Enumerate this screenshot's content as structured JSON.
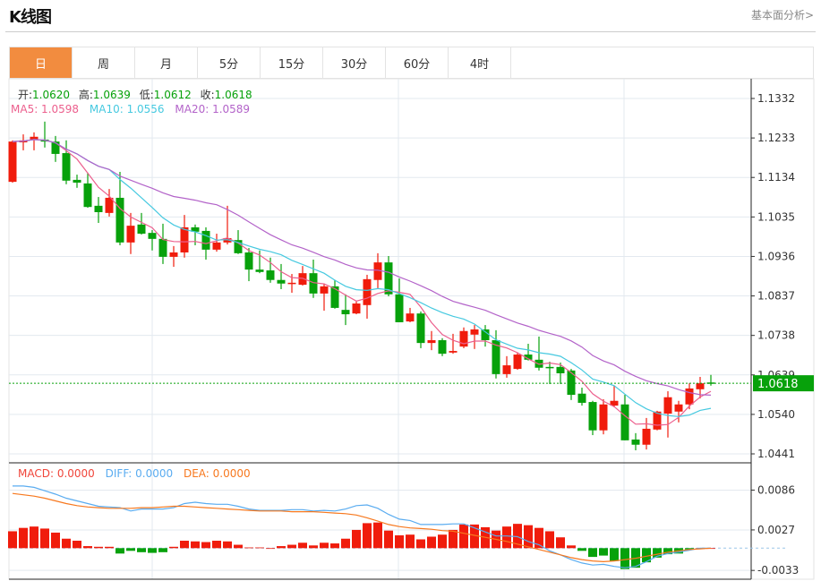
{
  "header": {
    "title": "K线图",
    "fundamental_link": "基本面分析>"
  },
  "tabs": [
    {
      "label": "日",
      "active": true
    },
    {
      "label": "周"
    },
    {
      "label": "月"
    },
    {
      "label": "5分"
    },
    {
      "label": "15分"
    },
    {
      "label": "30分"
    },
    {
      "label": "60分"
    },
    {
      "label": "4时"
    }
  ],
  "ohlc_legend": {
    "open_label": "开:",
    "open": "1.0620",
    "high_label": "高:",
    "high": "1.0639",
    "low_label": "低:",
    "low": "1.0612",
    "close_label": "收:",
    "close": "1.0618"
  },
  "ma_legend": {
    "ma5": "MA5: 1.0598",
    "ma10": "MA10: 1.0556",
    "ma20": "MA20: 1.0589"
  },
  "macd_legend": {
    "macd": "MACD: 0.0000",
    "diff": "DIFF: 0.0000",
    "dea": "DEA: 0.0000"
  },
  "colors": {
    "up": "#f01c0c",
    "down": "#07a10b",
    "ma5": "#ec5f8d",
    "ma10": "#46c9e0",
    "ma20": "#b363c9",
    "diff": "#5aacf0",
    "dea": "#f7781e",
    "tab_active": "#f28c3f"
  },
  "chart_data": [
    {
      "type": "candlestick",
      "price_ticks": [
        "1.1332",
        "1.1233",
        "1.1134",
        "1.1035",
        "1.0936",
        "1.0837",
        "1.0738",
        "1.0639",
        "1.0540",
        "1.0441"
      ],
      "ylim": [
        1.0441,
        1.1332
      ],
      "current_price": "1.0618",
      "ma_periods": [
        5,
        10,
        20
      ],
      "candles": [
        [
          1.1123,
          1.1227,
          1.1121,
          1.1224
        ],
        [
          1.1222,
          1.1242,
          1.1202,
          1.1227
        ],
        [
          1.1229,
          1.1247,
          1.1202,
          1.1236
        ],
        [
          1.1229,
          1.1274,
          1.1209,
          1.1224
        ],
        [
          1.1224,
          1.1238,
          1.1173,
          1.1193
        ],
        [
          1.1195,
          1.1227,
          1.1117,
          1.1126
        ],
        [
          1.1128,
          1.1141,
          1.1108,
          1.1121
        ],
        [
          1.1119,
          1.1146,
          1.1058,
          1.106
        ],
        [
          1.1063,
          1.1085,
          1.102,
          1.1047
        ],
        [
          1.1045,
          1.1105,
          1.1036,
          1.1083
        ],
        [
          1.1083,
          1.1148,
          1.0964,
          1.0971
        ],
        [
          1.0971,
          1.1045,
          1.0942,
          1.1013
        ],
        [
          1.1016,
          1.1045,
          1.0991,
          1.0993
        ],
        [
          1.0995,
          1.1002,
          1.0951,
          1.098
        ],
        [
          1.098,
          1.1018,
          1.0917,
          1.0935
        ],
        [
          1.0935,
          1.0962,
          1.091,
          1.0946
        ],
        [
          1.0946,
          1.104,
          1.0933,
          1.1009
        ],
        [
          1.1009,
          1.1016,
          1.0964,
          1.0998
        ],
        [
          1.1,
          1.1009,
          1.0928,
          1.0953
        ],
        [
          1.0953,
          1.0993,
          1.0948,
          1.0971
        ],
        [
          1.0971,
          1.1063,
          1.0966,
          1.0982
        ],
        [
          1.0977,
          1.1002,
          1.0942,
          1.0944
        ],
        [
          1.0946,
          1.0957,
          1.0874,
          1.0903
        ],
        [
          1.0903,
          1.0951,
          1.0894,
          1.0897
        ],
        [
          1.0901,
          1.0933,
          1.087,
          1.0877
        ],
        [
          1.0877,
          1.0917,
          1.0854,
          1.0868
        ],
        [
          1.0868,
          1.0892,
          1.0845,
          1.087
        ],
        [
          1.0865,
          1.0912,
          1.0863,
          1.0894
        ],
        [
          1.0894,
          1.0928,
          1.0832,
          1.0843
        ],
        [
          1.0843,
          1.0868,
          1.08,
          1.0861
        ],
        [
          1.0861,
          1.0877,
          1.0805,
          1.0807
        ],
        [
          1.0802,
          1.0841,
          1.0764,
          1.0791
        ],
        [
          1.0793,
          1.0823,
          1.0791,
          1.0818
        ],
        [
          1.0814,
          1.089,
          1.078,
          1.0879
        ],
        [
          1.0877,
          1.0944,
          1.0854,
          1.0921
        ],
        [
          1.0921,
          1.0937,
          1.0836,
          1.0841
        ],
        [
          1.0841,
          1.0881,
          1.0771,
          1.0771
        ],
        [
          1.0773,
          1.0807,
          1.0771,
          1.0793
        ],
        [
          1.0793,
          1.0798,
          1.0706,
          1.0719
        ],
        [
          1.0719,
          1.0749,
          1.0701,
          1.0726
        ],
        [
          1.0726,
          1.0731,
          1.0686,
          1.0692
        ],
        [
          1.0695,
          1.0742,
          1.0692,
          1.0699
        ],
        [
          1.071,
          1.0758,
          1.0706,
          1.0749
        ],
        [
          1.074,
          1.0764,
          1.0704,
          1.0753
        ],
        [
          1.0753,
          1.0764,
          1.071,
          1.0726
        ],
        [
          1.0726,
          1.0751,
          1.063,
          1.0641
        ],
        [
          1.0641,
          1.0686,
          1.0632,
          1.0663
        ],
        [
          1.0654,
          1.0695,
          1.0652,
          1.069
        ],
        [
          1.069,
          1.0717,
          1.0675,
          1.0677
        ],
        [
          1.0677,
          1.0735,
          1.065,
          1.0657
        ],
        [
          1.0659,
          1.0672,
          1.0616,
          1.0657
        ],
        [
          1.0659,
          1.067,
          1.0616,
          1.0643
        ],
        [
          1.065,
          1.0654,
          1.0576,
          1.0589
        ],
        [
          1.0592,
          1.0607,
          1.0562,
          1.0569
        ],
        [
          1.0571,
          1.0574,
          1.0488,
          1.05
        ],
        [
          1.05,
          1.0578,
          1.049,
          1.0565
        ],
        [
          1.0562,
          1.0612,
          1.0558,
          1.0574
        ],
        [
          1.0565,
          1.0589,
          1.0475,
          1.0475
        ],
        [
          1.0477,
          1.0493,
          1.045,
          1.0464
        ],
        [
          1.0464,
          1.0531,
          1.0452,
          1.0504
        ],
        [
          1.0502,
          1.0549,
          1.05,
          1.0547
        ],
        [
          1.0542,
          1.0598,
          1.0482,
          1.0583
        ],
        [
          1.0547,
          1.0574,
          1.052,
          1.0565
        ],
        [
          1.0565,
          1.0618,
          1.0553,
          1.0605
        ],
        [
          1.0603,
          1.0634,
          1.058,
          1.0618
        ],
        [
          1.062,
          1.0639,
          1.0612,
          1.0618
        ]
      ]
    },
    {
      "type": "macd",
      "ticks": [
        "0.0086",
        "0.0027",
        "-0.0033"
      ],
      "ylim": [
        -0.0045,
        0.0115
      ],
      "histogram": [
        0.0025,
        0.003,
        0.0032,
        0.0029,
        0.0023,
        0.0014,
        0.0011,
        0.0003,
        0.0002,
        0.0002,
        -0.0008,
        -0.0004,
        -0.0006,
        -0.0007,
        -0.0006,
        0.0002,
        0.0011,
        0.001,
        0.0009,
        0.0011,
        0.001,
        0.0005,
        0.0001,
        0.0001,
        0.0,
        0.0003,
        0.0005,
        0.0008,
        0.0004,
        0.0008,
        0.0007,
        0.0014,
        0.0027,
        0.0037,
        0.0038,
        0.0026,
        0.0019,
        0.002,
        0.0013,
        0.0017,
        0.002,
        0.0027,
        0.0035,
        0.0035,
        0.0031,
        0.0026,
        0.0032,
        0.0036,
        0.0034,
        0.003,
        0.0025,
        0.0016,
        0.0004,
        -0.0004,
        -0.0013,
        -0.0011,
        -0.0019,
        -0.0031,
        -0.0029,
        -0.0021,
        -0.0014,
        -0.0009,
        -0.0008,
        -0.0002,
        0.0,
        0.0
      ],
      "diff": [
        0.0092,
        0.0092,
        0.009,
        0.0085,
        0.008,
        0.0074,
        0.007,
        0.0066,
        0.0062,
        0.0061,
        0.006,
        0.0055,
        0.0058,
        0.0058,
        0.0058,
        0.006,
        0.0066,
        0.0068,
        0.0066,
        0.0065,
        0.0065,
        0.0062,
        0.0058,
        0.0056,
        0.0056,
        0.0056,
        0.0057,
        0.0057,
        0.0055,
        0.0056,
        0.0055,
        0.0058,
        0.0063,
        0.0064,
        0.0059,
        0.005,
        0.0043,
        0.0041,
        0.0035,
        0.0035,
        0.0035,
        0.0036,
        0.0036,
        0.003,
        0.0024,
        0.0018,
        0.0018,
        0.0017,
        0.001,
        0.0005,
        -0.0004,
        -0.001,
        -0.0017,
        -0.0022,
        -0.0025,
        -0.0024,
        -0.0027,
        -0.0029,
        -0.0027,
        -0.002,
        -0.0012,
        -0.0008,
        -0.0006,
        -0.0003,
        0.0,
        0.0
      ],
      "dea": [
        0.0081,
        0.0079,
        0.0077,
        0.0074,
        0.007,
        0.0066,
        0.0063,
        0.0061,
        0.006,
        0.0059,
        0.0059,
        0.0059,
        0.006,
        0.006,
        0.0061,
        0.0062,
        0.0062,
        0.0061,
        0.006,
        0.0059,
        0.0058,
        0.0057,
        0.0056,
        0.0055,
        0.0055,
        0.0055,
        0.0054,
        0.0054,
        0.0054,
        0.0053,
        0.0052,
        0.0051,
        0.0049,
        0.0045,
        0.004,
        0.0035,
        0.0032,
        0.003,
        0.0029,
        0.0028,
        0.0026,
        0.0025,
        0.0022,
        0.0019,
        0.0016,
        0.0013,
        0.001,
        0.0006,
        0.0002,
        -0.0002,
        -0.0006,
        -0.001,
        -0.0014,
        -0.0017,
        -0.0019,
        -0.002,
        -0.0019,
        -0.0017,
        -0.0015,
        -0.0012,
        -0.0009,
        -0.0006,
        -0.0004,
        -0.0002,
        -0.0001,
        0.0
      ]
    }
  ]
}
